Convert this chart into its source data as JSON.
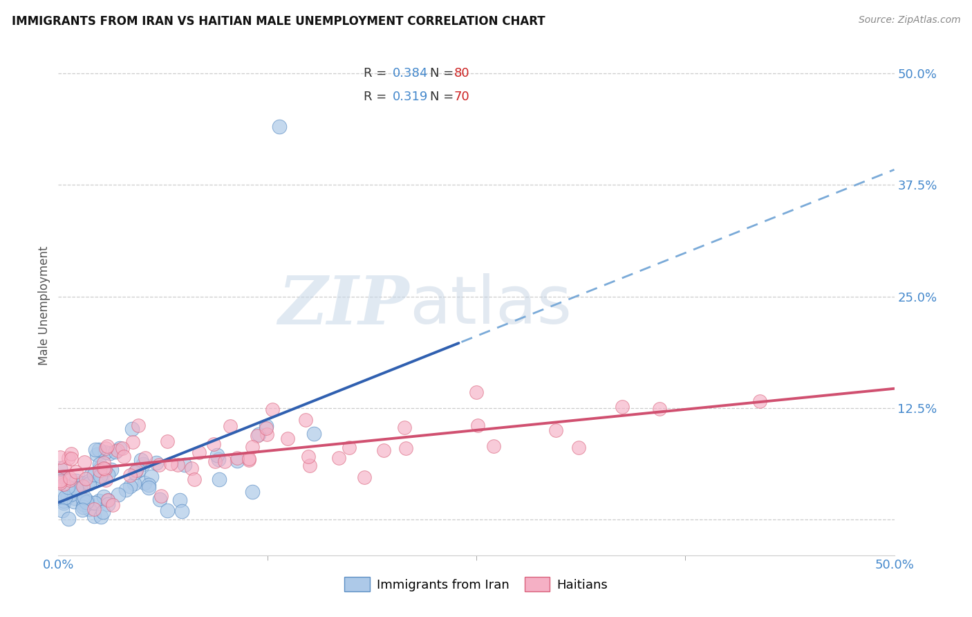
{
  "title": "IMMIGRANTS FROM IRAN VS HAITIAN MALE UNEMPLOYMENT CORRELATION CHART",
  "source": "Source: ZipAtlas.com",
  "ylabel": "Male Unemployment",
  "xlim": [
    0.0,
    0.5
  ],
  "ylim": [
    -0.04,
    0.52
  ],
  "ytick_vals": [
    0.0,
    0.125,
    0.25,
    0.375,
    0.5
  ],
  "iran_face_color": "#adc9e8",
  "iran_edge_color": "#5b8ec4",
  "haitian_face_color": "#f5b0c5",
  "haitian_edge_color": "#d9607a",
  "trend_iran_solid_color": "#3060b0",
  "trend_iran_dashed_color": "#7aaad8",
  "trend_haitian_color": "#d05070",
  "R_iran": 0.384,
  "N_iran": 80,
  "R_haitian": 0.319,
  "N_haitian": 70,
  "legend_label_iran": "Immigrants from Iran",
  "legend_label_haitian": "Haitians",
  "background_color": "#ffffff",
  "grid_color": "#cccccc",
  "title_color": "#111111",
  "source_color": "#888888",
  "tick_color": "#4488cc",
  "ylabel_color": "#555555",
  "r_label_color": "#333333",
  "r_val_color": "#4488cc",
  "n_val_color": "#cc2222"
}
